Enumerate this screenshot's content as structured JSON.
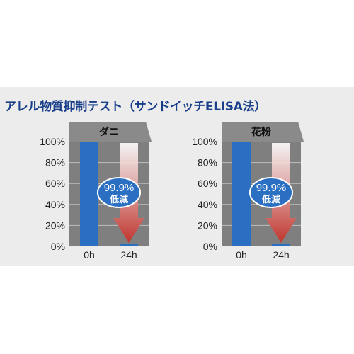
{
  "title": "アレル物質抑制テスト（サンドイッチELISA法）",
  "colors": {
    "title": "#1a3f8a",
    "bar": "#2a6fc2",
    "plot_bg": "#7f7f7f",
    "grid": "#bdbdbd",
    "badge": "#2a6fc2",
    "arrow_dark": "#c0352e"
  },
  "chart_data": [
    {
      "type": "bar",
      "title": "ダニ",
      "categories": [
        "0h",
        "24h"
      ],
      "values": [
        100,
        0.1
      ],
      "ylim": [
        0,
        100
      ],
      "yticks": [
        "0%",
        "20%",
        "40%",
        "60%",
        "80%",
        "100%"
      ],
      "grid": true,
      "annotation": {
        "value": "99.9%",
        "text": "低減",
        "icon": "down-arrow-icon"
      }
    },
    {
      "type": "bar",
      "title": "花粉",
      "categories": [
        "0h",
        "24h"
      ],
      "values": [
        100,
        0.1
      ],
      "ylim": [
        0,
        100
      ],
      "yticks": [
        "0%",
        "20%",
        "40%",
        "60%",
        "80%",
        "100%"
      ],
      "grid": true,
      "annotation": {
        "value": "99.9%",
        "text": "低減",
        "icon": "down-arrow-icon"
      }
    }
  ]
}
